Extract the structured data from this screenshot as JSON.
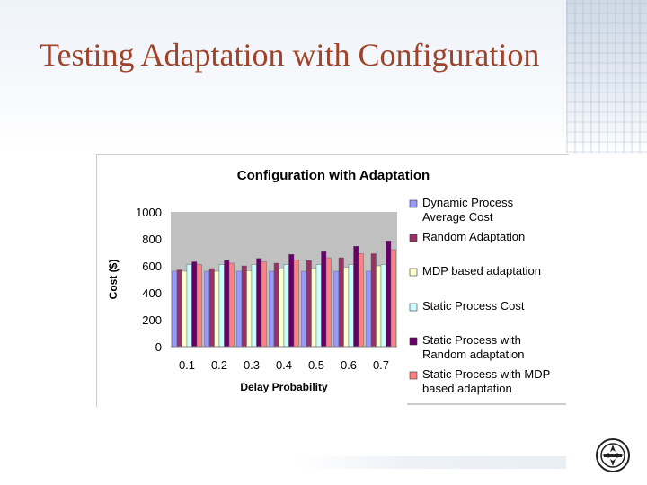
{
  "slide": {
    "title": "Testing Adaptation with Configuration",
    "title_color": "#a0432a"
  },
  "chart_data": {
    "type": "bar",
    "title": "Configuration with Adaptation",
    "xlabel": "Delay Probability",
    "ylabel": "Cost ($)",
    "ylim": [
      0,
      1000
    ],
    "yticks": [
      0,
      200,
      400,
      600,
      800,
      1000
    ],
    "grid": false,
    "legend_position": "right",
    "categories": [
      "0.1",
      "0.2",
      "0.3",
      "0.4",
      "0.5",
      "0.6",
      "0.7"
    ],
    "series": [
      {
        "name": "Dynamic Process Average Cost",
        "legend_lines": [
          "Dynamic Process",
          "Average Cost"
        ],
        "color": "#9999ff",
        "values": [
          560,
          560,
          560,
          560,
          560,
          560,
          560
        ]
      },
      {
        "name": "Random Adaptation",
        "legend_lines": [
          "Random Adaptation"
        ],
        "color": "#993366",
        "values": [
          570,
          580,
          600,
          620,
          640,
          660,
          690
        ]
      },
      {
        "name": "MDP based adaptation",
        "legend_lines": [
          "MDP based adaptation"
        ],
        "color": "#ffffcc",
        "values": [
          560,
          560,
          565,
          575,
          580,
          590,
          600
        ]
      },
      {
        "name": "Static Process Cost",
        "legend_lines": [
          "Static Process Cost"
        ],
        "color": "#ccffff",
        "values": [
          610,
          610,
          610,
          610,
          610,
          610,
          610
        ]
      },
      {
        "name": "Static Process with Random adaptation",
        "legend_lines": [
          "Static Process with",
          "Random adaptation"
        ],
        "color": "#660066",
        "values": [
          630,
          640,
          655,
          685,
          705,
          745,
          785
        ]
      },
      {
        "name": "Static Process with MDP based adaptation",
        "legend_lines": [
          "Static Process with MDP",
          "based adaptation"
        ],
        "color": "#ff8080",
        "values": [
          610,
          620,
          630,
          645,
          660,
          690,
          720
        ]
      }
    ]
  }
}
